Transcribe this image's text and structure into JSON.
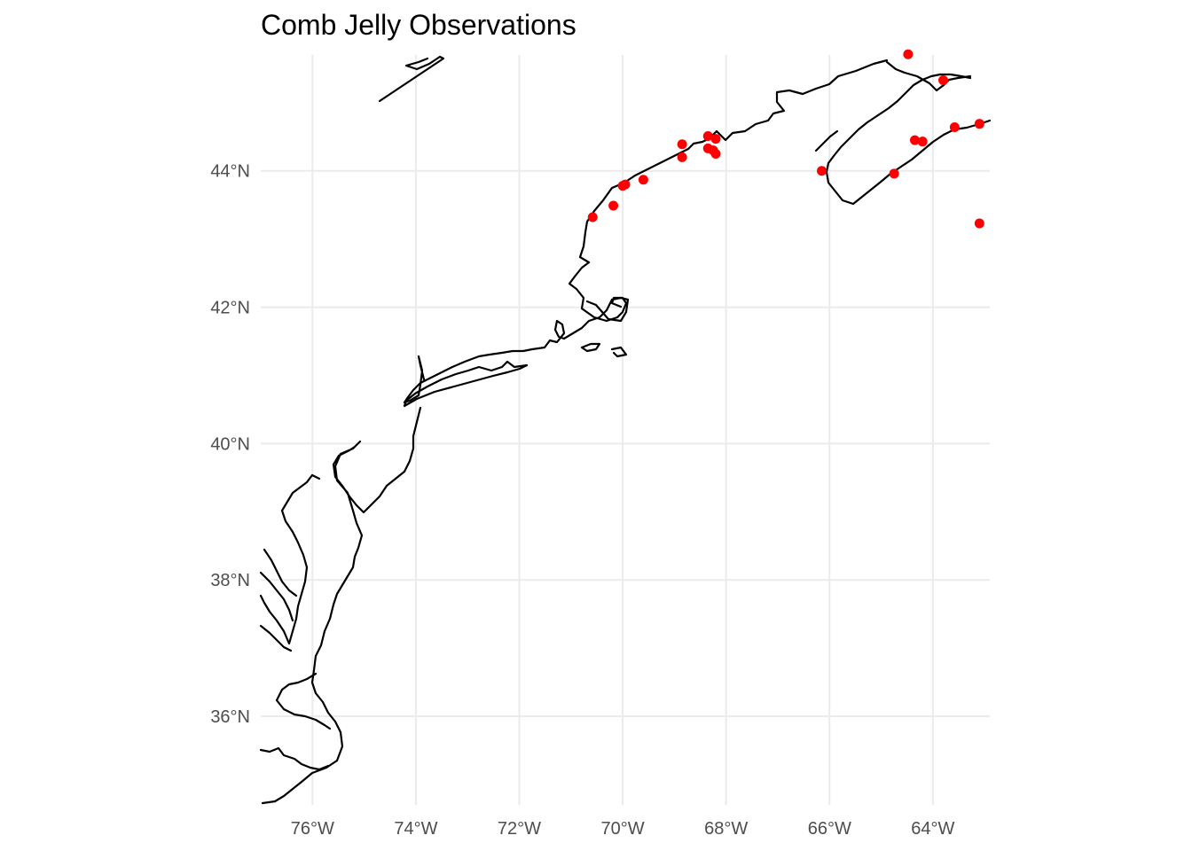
{
  "title": "Comb Jelly Observations",
  "map": {
    "lon_range": [
      -77.0,
      -62.9
    ],
    "lat_range": [
      34.7,
      45.7
    ],
    "x_ticks": [
      {
        "value": -76,
        "label": "76°W"
      },
      {
        "value": -74,
        "label": "74°W"
      },
      {
        "value": -72,
        "label": "72°W"
      },
      {
        "value": -70,
        "label": "70°W"
      },
      {
        "value": -68,
        "label": "68°W"
      },
      {
        "value": -66,
        "label": "66°W"
      },
      {
        "value": -64,
        "label": "64°W"
      }
    ],
    "y_ticks": [
      {
        "value": 44,
        "label": "44°N"
      },
      {
        "value": 42,
        "label": "42°N"
      },
      {
        "value": 40,
        "label": "40°N"
      },
      {
        "value": 38,
        "label": "38°N"
      },
      {
        "value": 36,
        "label": "36°N"
      }
    ],
    "grid": true,
    "point_color": "#ff0000",
    "coastline_color": "#000000",
    "observations": [
      {
        "lon": -64.48,
        "lat": 45.71
      },
      {
        "lon": -63.8,
        "lat": 45.33
      },
      {
        "lon": -63.1,
        "lat": 44.69
      },
      {
        "lon": -63.58,
        "lat": 44.64
      },
      {
        "lon": -64.35,
        "lat": 44.45
      },
      {
        "lon": -64.2,
        "lat": 44.43
      },
      {
        "lon": -64.75,
        "lat": 43.96
      },
      {
        "lon": -66.15,
        "lat": 44.0
      },
      {
        "lon": -63.1,
        "lat": 43.23
      },
      {
        "lon": -68.85,
        "lat": 44.39
      },
      {
        "lon": -68.85,
        "lat": 44.2
      },
      {
        "lon": -68.35,
        "lat": 44.51
      },
      {
        "lon": -68.2,
        "lat": 44.47
      },
      {
        "lon": -68.35,
        "lat": 44.33
      },
      {
        "lon": -68.25,
        "lat": 44.3
      },
      {
        "lon": -68.2,
        "lat": 44.25
      },
      {
        "lon": -69.6,
        "lat": 43.87
      },
      {
        "lon": -69.95,
        "lat": 43.8
      },
      {
        "lon": -70.0,
        "lat": 43.78
      },
      {
        "lon": -70.18,
        "lat": 43.49
      },
      {
        "lon": -70.58,
        "lat": 43.32
      }
    ]
  }
}
